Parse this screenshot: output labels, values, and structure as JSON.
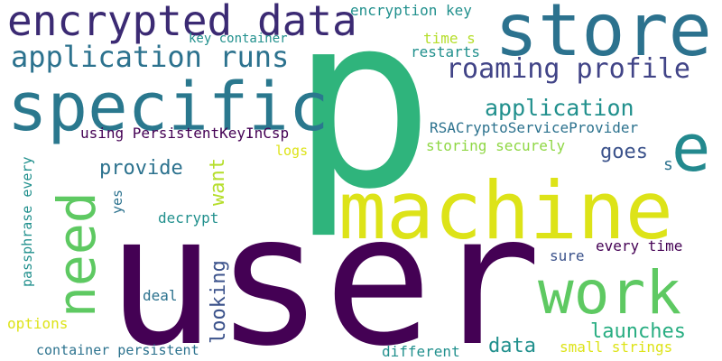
{
  "palette": {
    "dark_purple": "#440154",
    "indigo": "#3b2a73",
    "blue_purple": "#414487",
    "steel_blue": "#31688e",
    "teal_blue": "#2c728e",
    "teal": "#21908d",
    "sea_green": "#29af7f",
    "green": "#5ec962",
    "light_green": "#8fd744",
    "yellow_green": "#b5de2b",
    "yellow": "#dde318"
  },
  "words": {
    "user": "user",
    "p": "p",
    "machine": "machine",
    "store": "store",
    "specific": "specific",
    "encrypted_data": "encrypted data",
    "work": "work",
    "need": "need",
    "e": "e",
    "application_runs": "application runs",
    "roaming_profile": "roaming profile",
    "application": "application",
    "encryption_key": "encryption key",
    "key_container": "key container",
    "time_s": "time s",
    "restarts": "restarts",
    "rsacsp": "RSACryptoServiceProvider",
    "using_persistent": "using PersistentKeyInCsp",
    "storing_securely": "storing securely",
    "goes": "goes",
    "s": "s",
    "logs": "logs",
    "provide": "provide",
    "want": "want",
    "passphrase_every": "passphrase every",
    "yes": "yes",
    "decrypt": "decrypt",
    "looking": "looking",
    "every_time": "every time",
    "sure": "sure",
    "deal": "deal",
    "launches": "launches",
    "options": "options",
    "data": "data",
    "small_strings": "small strings",
    "container_persistent": "container persistent",
    "different": "different"
  }
}
